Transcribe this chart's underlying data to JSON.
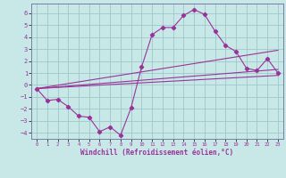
{
  "xlabel": "Windchill (Refroidissement éolien,°C)",
  "bg_color": "#c8e8e8",
  "line_color": "#993399",
  "grid_color": "#a0c8c8",
  "spine_color": "#7a7aaa",
  "xlim": [
    -0.5,
    23.5
  ],
  "ylim": [
    -4.5,
    6.8
  ],
  "yticks": [
    -4,
    -3,
    -2,
    -1,
    0,
    1,
    2,
    3,
    4,
    5,
    6
  ],
  "xticks": [
    0,
    1,
    2,
    3,
    4,
    5,
    6,
    7,
    8,
    9,
    10,
    11,
    12,
    13,
    14,
    15,
    16,
    17,
    18,
    19,
    20,
    21,
    22,
    23
  ],
  "curve_x": [
    0,
    1,
    2,
    3,
    4,
    5,
    6,
    7,
    8,
    9,
    10,
    11,
    12,
    13,
    14,
    15,
    16,
    17,
    18,
    19,
    20,
    21,
    22,
    23
  ],
  "curve_y": [
    -0.3,
    -1.3,
    -1.2,
    -1.8,
    -2.6,
    -2.7,
    -3.9,
    -3.5,
    -4.2,
    -1.9,
    1.5,
    4.2,
    4.8,
    4.8,
    5.8,
    6.3,
    5.9,
    4.5,
    3.3,
    2.8,
    1.4,
    1.2,
    2.2,
    1.0
  ],
  "line2_x": [
    0,
    23
  ],
  "line2_y": [
    -0.3,
    2.9
  ],
  "line3_x": [
    0,
    23
  ],
  "line3_y": [
    -0.3,
    1.3
  ],
  "line4_x": [
    0,
    23
  ],
  "line4_y": [
    -0.3,
    0.8
  ]
}
